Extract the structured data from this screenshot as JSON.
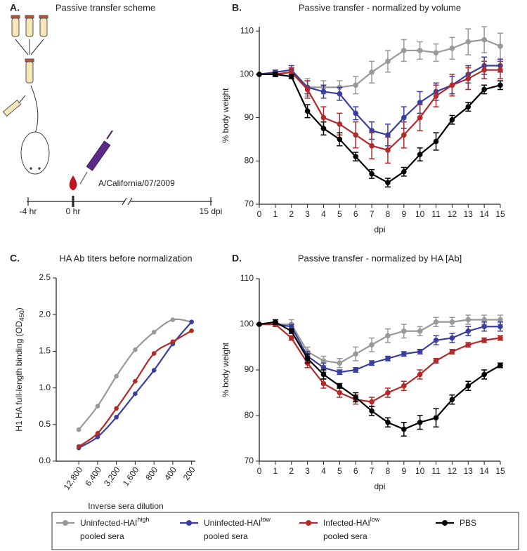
{
  "scheme": {
    "panel": "A.",
    "title": "Passive transfer scheme",
    "virus": "A/California/07/2009",
    "times": [
      "-4 hr",
      "0 hr",
      "15 dpi"
    ]
  },
  "chart_data": [
    {
      "type": "line",
      "panel": "B.",
      "title": "Passive transfer - normalized by volume",
      "xlabel": "dpi",
      "ylabel": "% body weight",
      "x": [
        0,
        1,
        2,
        3,
        4,
        5,
        6,
        7,
        8,
        9,
        10,
        11,
        12,
        13,
        14,
        15
      ],
      "xlim": [
        0,
        15
      ],
      "xticks": [
        0,
        1,
        2,
        3,
        4,
        5,
        6,
        7,
        8,
        9,
        10,
        11,
        12,
        13,
        14,
        15
      ],
      "ylim": [
        70,
        111
      ],
      "yticks": [
        70,
        80,
        90,
        100,
        110
      ],
      "series": [
        {
          "name": "Uninfected-HAI",
          "name_sup": "high",
          "name_line2": "pooled sera",
          "color": "#999999",
          "values": [
            100,
            100,
            100.5,
            97,
            97,
            97,
            97.5,
            100.5,
            103,
            105.5,
            105.5,
            105,
            106,
            107.5,
            108,
            106.5
          ],
          "errors": [
            0,
            0.5,
            1,
            2,
            1.5,
            1.5,
            2,
            2.5,
            2.5,
            2.5,
            2,
            2,
            2.5,
            3,
            3,
            3
          ]
        },
        {
          "name": "Uninfected-HAI",
          "name_sup": "low",
          "name_line2": "pooled sera",
          "color": "#3a3f9e",
          "values": [
            100,
            100.5,
            101,
            97,
            96,
            95.5,
            91,
            87,
            86,
            90,
            93.5,
            96,
            97.5,
            100,
            102,
            102
          ],
          "errors": [
            0,
            0.5,
            1,
            1.5,
            1.5,
            1.5,
            1.5,
            2,
            2.5,
            2.5,
            2.5,
            2,
            2,
            2,
            2,
            1.5
          ]
        },
        {
          "name": "Infected-HAI",
          "name_sup": "low",
          "name_line2": "pooled sera",
          "color": "#b22a2a",
          "values": [
            100,
            100,
            100.5,
            96.5,
            90,
            88.5,
            86,
            83.5,
            82.5,
            86,
            90,
            95,
            97.5,
            99,
            101,
            101
          ],
          "errors": [
            0,
            0.5,
            1,
            2,
            2.5,
            2.5,
            3,
            3,
            3,
            3,
            3,
            2.5,
            2.5,
            2.5,
            2,
            2
          ]
        },
        {
          "name": "PBS",
          "color": "#000000",
          "values": [
            100,
            100,
            99.5,
            91.5,
            87.5,
            85,
            81,
            77,
            75,
            77.5,
            81.5,
            84.5,
            89.5,
            92.5,
            96.5,
            97.5
          ],
          "errors": [
            0,
            0.5,
            0.5,
            1.5,
            1.5,
            1.5,
            1,
            1,
            1,
            1,
            1.5,
            2,
            1,
            1,
            1,
            1
          ]
        }
      ]
    },
    {
      "type": "curve",
      "panel": "C.",
      "title": "HA Ab titers before normalization",
      "xlabel": "Inverse sera dilution",
      "ylabel": "H1 HA full-length binding (OD",
      "ylabel_sub": "450",
      "ylabel_end": ")",
      "categories": [
        "12,800",
        "6,400",
        "3,200",
        "1,600",
        "800",
        "400",
        "200"
      ],
      "ylim": [
        0,
        2.5
      ],
      "yticks": [
        {
          "value": 0,
          "label": "0.0"
        },
        0.5,
        {
          "value": 1,
          "label": "1.0"
        },
        1.5,
        {
          "value": 2,
          "label": "2.0"
        },
        2.5
      ],
      "series": [
        {
          "color": "#999999",
          "values": [
            0.43,
            0.75,
            1.16,
            1.52,
            1.76,
            1.93,
            1.9
          ]
        },
        {
          "color": "#3a3f9e",
          "values": [
            0.18,
            0.33,
            0.6,
            0.92,
            1.24,
            1.6,
            1.9
          ]
        },
        {
          "color": "#b22a2a",
          "values": [
            0.2,
            0.38,
            0.72,
            1.09,
            1.47,
            1.63,
            1.78
          ]
        }
      ]
    },
    {
      "type": "line",
      "panel": "D.",
      "title": "Passive transfer - normalized by HA [Ab]",
      "xlabel": "dpi",
      "ylabel": "% body weight",
      "x": [
        0,
        1,
        2,
        3,
        4,
        5,
        6,
        7,
        8,
        9,
        10,
        11,
        12,
        13,
        14,
        15
      ],
      "xlim": [
        0,
        15
      ],
      "xticks": [
        0,
        1,
        2,
        3,
        4,
        5,
        6,
        7,
        8,
        9,
        10,
        11,
        12,
        13,
        14,
        15
      ],
      "ylim": [
        70,
        110
      ],
      "yticks": [
        70,
        80,
        90,
        100,
        110
      ],
      "series": [
        {
          "color": "#999999",
          "values": [
            100,
            100,
            100,
            94,
            92,
            91.5,
            93.5,
            95.5,
            97.5,
            98.5,
            98.5,
            100.5,
            100.5,
            101,
            101,
            101
          ],
          "errors": [
            0,
            0.5,
            1,
            1,
            1,
            1,
            1.5,
            1.5,
            1.5,
            1.5,
            1,
            1,
            1,
            1,
            1,
            1
          ]
        },
        {
          "color": "#3a3f9e",
          "values": [
            100,
            100,
            99.5,
            93,
            90.5,
            89.5,
            90,
            91.5,
            92.5,
            93.5,
            94,
            96.5,
            97,
            98.5,
            99.5,
            99.5
          ],
          "errors": [
            0,
            0.5,
            0.5,
            1,
            1,
            0.5,
            0.5,
            0.5,
            0.5,
            0.5,
            0.5,
            1,
            1,
            1,
            1,
            1
          ]
        },
        {
          "color": "#b22a2a",
          "values": [
            100,
            100,
            97,
            91.5,
            87,
            85,
            83.5,
            83,
            85,
            86.5,
            89,
            92,
            94,
            95.5,
            96.5,
            97
          ],
          "errors": [
            0,
            0.5,
            0.5,
            1,
            1,
            1,
            1,
            1,
            1,
            1,
            1,
            0.5,
            0.5,
            0.5,
            0.5,
            0.5
          ]
        },
        {
          "color": "#000000",
          "values": [
            100,
            100.5,
            98.5,
            92.5,
            89,
            86.5,
            84,
            81,
            78.5,
            77,
            78.5,
            79.5,
            83.5,
            86.5,
            89,
            91
          ],
          "errors": [
            0,
            0.5,
            0.5,
            1,
            1,
            0.5,
            1,
            1,
            1,
            1.5,
            1.5,
            2,
            1,
            1,
            1,
            0.5
          ]
        }
      ]
    }
  ]
}
